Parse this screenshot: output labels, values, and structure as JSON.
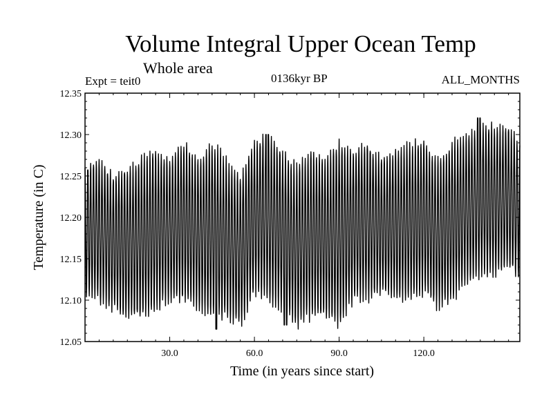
{
  "header": {
    "title": "Volume Integral Upper Ocean Temp",
    "subtitle": "Whole area",
    "experiment": "Expt = teit0",
    "period": "0136kyr BP",
    "months": "ALL_MONTHS"
  },
  "chart_data": {
    "type": "line",
    "title": "Volume Integral Upper Ocean Temp",
    "xlabel": "Time (in years since start)",
    "ylabel": "Temperature (in C)",
    "xlim": [
      0,
      154
    ],
    "ylim": [
      12.05,
      12.35
    ],
    "x_ticks": [
      30,
      60,
      90,
      120
    ],
    "x_tick_labels": [
      "30.0",
      "60.0",
      "90.0",
      "120.0"
    ],
    "y_ticks": [
      12.05,
      12.1,
      12.15,
      12.2,
      12.25,
      12.3,
      12.35
    ],
    "y_tick_labels": [
      "12.05",
      "12.10",
      "12.15",
      "12.20",
      "12.25",
      "12.30",
      "12.35"
    ],
    "grid": false,
    "series": [
      {
        "name": "Volume integral upper ocean temperature",
        "sampling": "monthly",
        "annual_cycle": {
          "x": [
            0,
            5,
            10,
            15,
            20,
            25,
            30,
            35,
            40,
            45,
            50,
            55,
            60,
            65,
            70,
            75,
            80,
            85,
            90,
            95,
            100,
            105,
            110,
            115,
            120,
            125,
            130,
            135,
            140,
            145,
            150,
            154
          ],
          "max": [
            12.26,
            12.27,
            12.25,
            12.26,
            12.27,
            12.28,
            12.27,
            12.29,
            12.27,
            12.29,
            12.27,
            12.25,
            12.29,
            12.3,
            12.28,
            12.26,
            12.28,
            12.27,
            12.29,
            12.28,
            12.29,
            12.27,
            12.28,
            12.29,
            12.29,
            12.27,
            12.29,
            12.3,
            12.31,
            12.31,
            12.31,
            12.29
          ],
          "min": [
            12.11,
            12.1,
            12.09,
            12.08,
            12.08,
            12.09,
            12.1,
            12.1,
            12.09,
            12.08,
            12.08,
            12.07,
            12.11,
            12.1,
            12.09,
            12.07,
            12.08,
            12.08,
            12.07,
            12.1,
            12.1,
            12.11,
            12.1,
            12.1,
            12.11,
            12.09,
            12.1,
            12.12,
            12.13,
            12.13,
            12.14,
            12.13
          ],
          "extremes": [
            {
              "x": 46.5,
              "y": 12.065
            },
            {
              "x": 71,
              "y": 12.07
            },
            {
              "x": 64.5,
              "y": 12.3
            },
            {
              "x": 139.5,
              "y": 12.32
            }
          ]
        }
      }
    ]
  }
}
